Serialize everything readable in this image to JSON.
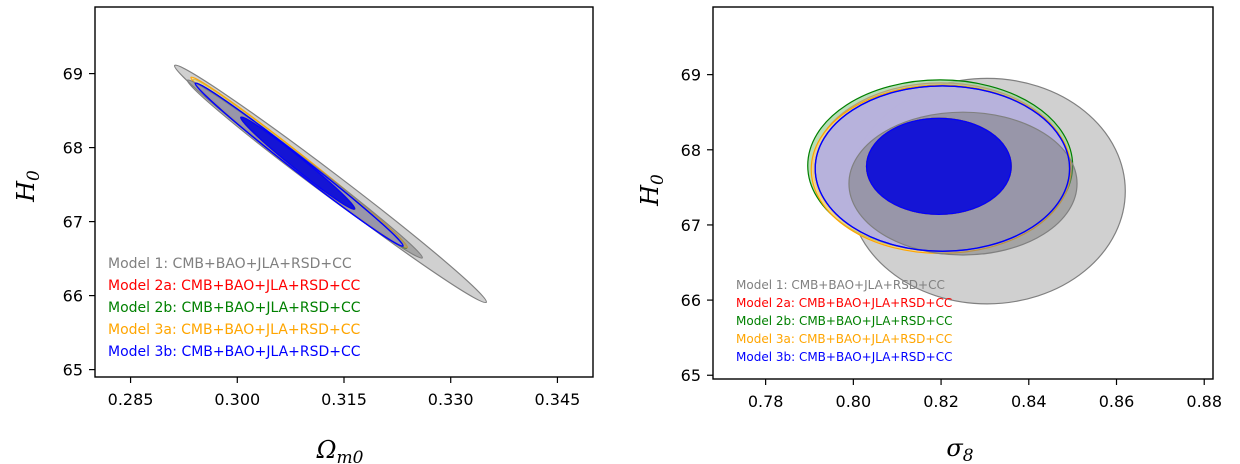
{
  "chart_data": [
    {
      "type": "contour",
      "title": "",
      "xlabel_main": "Ω",
      "xlabel_sub": "m0",
      "ylabel_main": "H",
      "ylabel_sub": "0",
      "xlim": [
        0.28,
        0.35
      ],
      "ylim": [
        64.9,
        69.9
      ],
      "xticks": [
        "0.285",
        "0.300",
        "0.315",
        "0.330",
        "0.345"
      ],
      "xtick_values": [
        0.285,
        0.3,
        0.315,
        0.33,
        0.345
      ],
      "yticks": [
        "65",
        "66",
        "67",
        "68",
        "69"
      ],
      "ytick_values": [
        65,
        66,
        67,
        68,
        69
      ],
      "legend_position": "lower-left",
      "series": [
        {
          "name": "Model 1: CMB+BAO+JLA+RSD+CC",
          "color": "#808080",
          "fill": "#c8c8c8",
          "fill_inner": "#808080",
          "contours": {
            "outer": {
              "cx": 0.3131,
              "cy": 67.51,
              "a": 0.0219,
              "b": 1.6
            },
            "inner": {
              "cx": 0.3095,
              "cy": 67.71,
              "a": 0.0165,
              "b": 1.2
            }
          }
        },
        {
          "name": "Model 2a: CMB+BAO+JLA+RSD+CC",
          "color": "#ff0000",
          "fill": "#f3a3a3",
          "fill_inner": "#cc0000",
          "contours": {
            "outer": {
              "cx": 0.3087,
              "cy": 67.79,
              "a": 0.0148,
              "b": 1.13
            },
            "inner": {
              "cx": 0.3085,
              "cy": 67.79,
              "a": 0.008,
              "b": 0.62
            }
          }
        },
        {
          "name": "Model 2b: CMB+BAO+JLA+RSD+CC",
          "color": "#008000",
          "fill": "#9fd39f",
          "fill_inner": "#1a7a1a",
          "contours": {
            "outer": {
              "cx": 0.3088,
              "cy": 67.78,
              "a": 0.015,
              "b": 1.14
            },
            "inner": {
              "cx": 0.3085,
              "cy": 67.79,
              "a": 0.008,
              "b": 0.62
            }
          }
        },
        {
          "name": "Model 3a: CMB+BAO+JLA+RSD+CC",
          "color": "#ffa500",
          "fill": "#ffd88a",
          "fill_inner": "#e08a00",
          "contours": {
            "outer": {
              "cx": 0.3087,
              "cy": 67.8,
              "a": 0.0152,
              "b": 1.15
            },
            "inner": {
              "cx": 0.3085,
              "cy": 67.79,
              "a": 0.008,
              "b": 0.62
            }
          }
        },
        {
          "name": "Model 3b: CMB+BAO+JLA+RSD+CC",
          "color": "#0000ff",
          "fill": "#a5a5f5",
          "fill_inner": "#1515d5",
          "contours": {
            "outer": {
              "cx": 0.3087,
              "cy": 67.77,
              "a": 0.0146,
              "b": 1.1
            },
            "inner": {
              "cx": 0.3085,
              "cy": 67.79,
              "a": 0.008,
              "b": 0.62
            }
          }
        }
      ]
    },
    {
      "type": "contour",
      "title": "",
      "xlabel_main": "σ",
      "xlabel_sub": "8",
      "ylabel_main": "H",
      "ylabel_sub": "0",
      "xlim": [
        0.768,
        0.882
      ],
      "ylim": [
        64.95,
        69.9
      ],
      "xticks": [
        "0.78",
        "0.80",
        "0.82",
        "0.84",
        "0.86",
        "0.88"
      ],
      "xtick_values": [
        0.78,
        0.8,
        0.82,
        0.84,
        0.86,
        0.88
      ],
      "yticks": [
        "65",
        "66",
        "67",
        "68",
        "69"
      ],
      "ytick_values": [
        65,
        66,
        67,
        68,
        69
      ],
      "legend_position": "lower-left",
      "series": [
        {
          "name": "Model 1: CMB+BAO+JLA+RSD+CC",
          "color": "#808080",
          "fill": "#c8c8c8",
          "fill_inner": "#808080",
          "contours": {
            "outer": {
              "cx": 0.8305,
              "cy": 67.45,
              "a": 0.0315,
              "b": 1.5
            },
            "inner": {
              "cx": 0.825,
              "cy": 67.55,
              "a": 0.026,
              "b": 0.95
            }
          }
        },
        {
          "name": "Model 2a: CMB+BAO+JLA+RSD+CC",
          "color": "#ff0000",
          "fill": "#f3a3a3",
          "fill_inner": "#cc0000",
          "contours": {
            "outer": {
              "cx": 0.82,
              "cy": 67.77,
              "a": 0.0292,
              "b": 1.12
            },
            "inner": {
              "cx": 0.8195,
              "cy": 67.78,
              "a": 0.0165,
              "b": 0.64
            }
          }
        },
        {
          "name": "Model 2b: CMB+BAO+JLA+RSD+CC",
          "color": "#008000",
          "fill": "#9fd39f",
          "fill_inner": "#1a7a1a",
          "contours": {
            "outer": {
              "cx": 0.8198,
              "cy": 67.79,
              "a": 0.0302,
              "b": 1.14
            },
            "inner": {
              "cx": 0.8195,
              "cy": 67.78,
              "a": 0.0165,
              "b": 0.64
            }
          }
        },
        {
          "name": "Model 3a: CMB+BAO+JLA+RSD+CC",
          "color": "#ffa500",
          "fill": "#ffd88a",
          "fill_inner": "#e08a00",
          "contours": {
            "outer": {
              "cx": 0.82,
              "cy": 67.74,
              "a": 0.0296,
              "b": 1.12
            },
            "inner": {
              "cx": 0.8195,
              "cy": 67.78,
              "a": 0.0165,
              "b": 0.64
            }
          }
        },
        {
          "name": "Model 3b: CMB+BAO+JLA+RSD+CC",
          "color": "#0000ff",
          "fill": "#a5a5f5",
          "fill_inner": "#1515d5",
          "contours": {
            "outer": {
              "cx": 0.8203,
              "cy": 67.75,
              "a": 0.029,
              "b": 1.1
            },
            "inner": {
              "cx": 0.8195,
              "cy": 67.78,
              "a": 0.0165,
              "b": 0.64
            }
          }
        }
      ]
    }
  ]
}
